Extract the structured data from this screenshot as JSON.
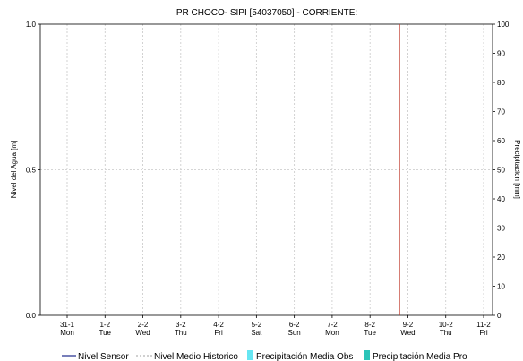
{
  "chart_data": {
    "type": "line",
    "title": "PR CHOCO- SIPI [54037050] - CORRIENTE:",
    "ylabel_left": "Nivel del Agua [m]",
    "ylabel_right": "Precipitacion [mm]",
    "ylim_left": [
      0.0,
      1.0
    ],
    "ylim_right": [
      0,
      100
    ],
    "yticks_left": [
      "0.0",
      "0.5",
      "1.0"
    ],
    "yticks_right": [
      "0",
      "10",
      "20",
      "30",
      "40",
      "50",
      "60",
      "70",
      "80",
      "90",
      "100"
    ],
    "x_categories": [
      {
        "date": "31-1",
        "day": "Mon"
      },
      {
        "date": "1-2",
        "day": "Tue"
      },
      {
        "date": "2-2",
        "day": "Wed"
      },
      {
        "date": "3-2",
        "day": "Thu"
      },
      {
        "date": "4-2",
        "day": "Fri"
      },
      {
        "date": "5-2",
        "day": "Sat"
      },
      {
        "date": "6-2",
        "day": "Sun"
      },
      {
        "date": "7-2",
        "day": "Mon"
      },
      {
        "date": "8-2",
        "day": "Tue"
      },
      {
        "date": "9-2",
        "day": "Wed"
      },
      {
        "date": "10-2",
        "day": "Thu"
      },
      {
        "date": "11-2",
        "day": "Fri"
      }
    ],
    "current_marker_date": "8-2 (late)",
    "grid": true,
    "series": [
      {
        "name": "Nivel Sensor",
        "color": "#1f2a8c",
        "values": []
      },
      {
        "name": "Nivel Medio Historico",
        "color": "#a0a0a0",
        "values": []
      },
      {
        "name": "Precipitación Media Obs",
        "color": "#66e6f2",
        "values": []
      },
      {
        "name": "Precipitación Media Pro",
        "color": "#2bc4b8",
        "values": []
      }
    ],
    "marker_color": "#c0392b"
  }
}
